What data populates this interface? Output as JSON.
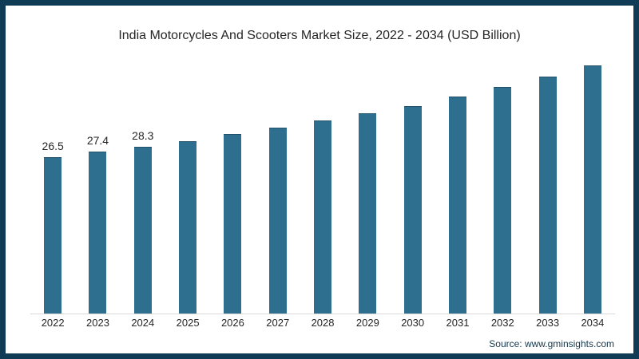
{
  "frame": {
    "border_color": "#0f3c54",
    "background_color": "#ffffff"
  },
  "chart_data": {
    "type": "bar",
    "title": "India Motorcycles And Scooters Market Size, 2022 - 2034 (USD Billion)",
    "categories": [
      "2022",
      "2023",
      "2024",
      "2025",
      "2026",
      "2027",
      "2028",
      "2029",
      "2030",
      "2031",
      "2032",
      "2033",
      "2034"
    ],
    "values": [
      26.5,
      27.4,
      28.3,
      29.2,
      30.4,
      31.5,
      32.7,
      33.9,
      35.2,
      36.8,
      38.4,
      40.1,
      42.0
    ],
    "data_labels": [
      "26.5",
      "27.4",
      "28.3",
      "",
      "",
      "",
      "",
      "",
      "",
      "",
      "",
      "",
      ""
    ],
    "xlabel": "",
    "ylabel": "",
    "ylim": [
      0,
      45
    ],
    "grid": false,
    "legend_position": "none",
    "bar_color": "#2e6e8e",
    "label_color": "#262626",
    "axis_line_color": "#d9d9d9",
    "source": "Source: www.gminsights.com",
    "source_color": "#16384c"
  }
}
